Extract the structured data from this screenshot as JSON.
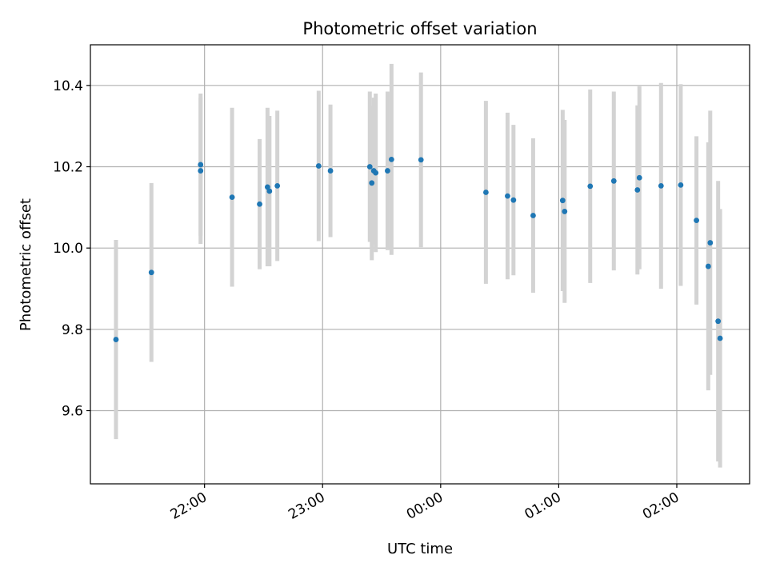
{
  "chart_data": {
    "type": "scatter",
    "title": "Photometric offset variation",
    "xlabel": "UTC time",
    "ylabel": "Photometric offset",
    "x_ticks": [
      "22:00",
      "23:00",
      "00:00",
      "01:00",
      "02:00"
    ],
    "y_ticks": [
      "9.6",
      "9.8",
      "10.0",
      "10.2",
      "10.4"
    ],
    "xlim": [
      "21:02",
      "02:37"
    ],
    "ylim": [
      9.42,
      10.5
    ],
    "grid": true,
    "point_color": "#1f77b4",
    "errorbar_color": "#d3d3d3",
    "points": [
      {
        "x": "21:15",
        "y": 9.775,
        "err": 0.245
      },
      {
        "x": "21:33",
        "y": 9.94,
        "err": 0.22
      },
      {
        "x": "21:58",
        "y": 10.205,
        "err": 0.175
      },
      {
        "x": "21:58",
        "y": 10.19,
        "err": 0.18
      },
      {
        "x": "22:14",
        "y": 10.125,
        "err": 0.22
      },
      {
        "x": "22:28",
        "y": 10.108,
        "err": 0.16
      },
      {
        "x": "22:32",
        "y": 10.15,
        "err": 0.195
      },
      {
        "x": "22:33",
        "y": 10.14,
        "err": 0.185
      },
      {
        "x": "22:37",
        "y": 10.153,
        "err": 0.185
      },
      {
        "x": "22:58",
        "y": 10.202,
        "err": 0.185
      },
      {
        "x": "23:04",
        "y": 10.19,
        "err": 0.163
      },
      {
        "x": "23:24",
        "y": 10.2,
        "err": 0.185
      },
      {
        "x": "23:25",
        "y": 10.16,
        "err": 0.19
      },
      {
        "x": "23:26",
        "y": 10.19,
        "err": 0.18
      },
      {
        "x": "23:27",
        "y": 10.185,
        "err": 0.195
      },
      {
        "x": "23:33",
        "y": 10.19,
        "err": 0.195
      },
      {
        "x": "23:35",
        "y": 10.218,
        "err": 0.235
      },
      {
        "x": "23:50",
        "y": 10.217,
        "err": 0.215
      },
      {
        "x": "00:23",
        "y": 10.137,
        "err": 0.225
      },
      {
        "x": "00:34",
        "y": 10.128,
        "err": 0.205
      },
      {
        "x": "00:37",
        "y": 10.118,
        "err": 0.185
      },
      {
        "x": "00:47",
        "y": 10.08,
        "err": 0.19
      },
      {
        "x": "01:02",
        "y": 10.117,
        "err": 0.223
      },
      {
        "x": "01:03",
        "y": 10.09,
        "err": 0.225
      },
      {
        "x": "01:16",
        "y": 10.152,
        "err": 0.238
      },
      {
        "x": "01:28",
        "y": 10.165,
        "err": 0.22
      },
      {
        "x": "01:40",
        "y": 10.143,
        "err": 0.208
      },
      {
        "x": "01:41",
        "y": 10.173,
        "err": 0.225
      },
      {
        "x": "01:52",
        "y": 10.153,
        "err": 0.253
      },
      {
        "x": "02:02",
        "y": 10.155,
        "err": 0.248
      },
      {
        "x": "02:10",
        "y": 10.068,
        "err": 0.207
      },
      {
        "x": "02:16",
        "y": 9.955,
        "err": 0.305
      },
      {
        "x": "02:17",
        "y": 10.013,
        "err": 0.325
      },
      {
        "x": "02:21",
        "y": 9.82,
        "err": 0.345
      },
      {
        "x": "02:22",
        "y": 9.778,
        "err": 0.318
      }
    ]
  }
}
